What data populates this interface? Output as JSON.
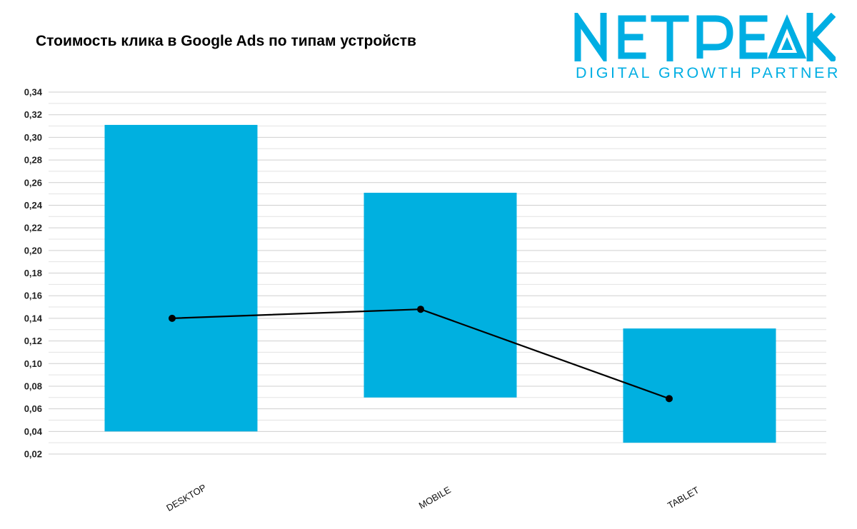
{
  "title": "Стоимость клика в Google Ads по типам устройств",
  "logo": {
    "wordmark": "NETPEAK",
    "tagline": "DIGITAL GROWTH PARTNER",
    "color": "#00aee3"
  },
  "chart_data": {
    "type": "bar",
    "categories": [
      "DESKTOP",
      "MOBILE",
      "TABLET"
    ],
    "yticks": [
      "0,02",
      "0,04",
      "0,06",
      "0,08",
      "0,10",
      "0,12",
      "0,14",
      "0,16",
      "0,18",
      "0,20",
      "0,22",
      "0,24",
      "0,26",
      "0,28",
      "0,30",
      "0,32",
      "0,34"
    ],
    "ylim": [
      0.02,
      0.34
    ],
    "grid": true,
    "series": [
      {
        "type": "floating-bar",
        "low": [
          0.04,
          0.07,
          0.03
        ],
        "high": [
          0.311,
          0.251,
          0.131
        ],
        "color": "#00b0e0"
      },
      {
        "type": "line",
        "values": [
          0.14,
          0.148,
          0.069
        ],
        "color": "#000000"
      }
    ]
  }
}
